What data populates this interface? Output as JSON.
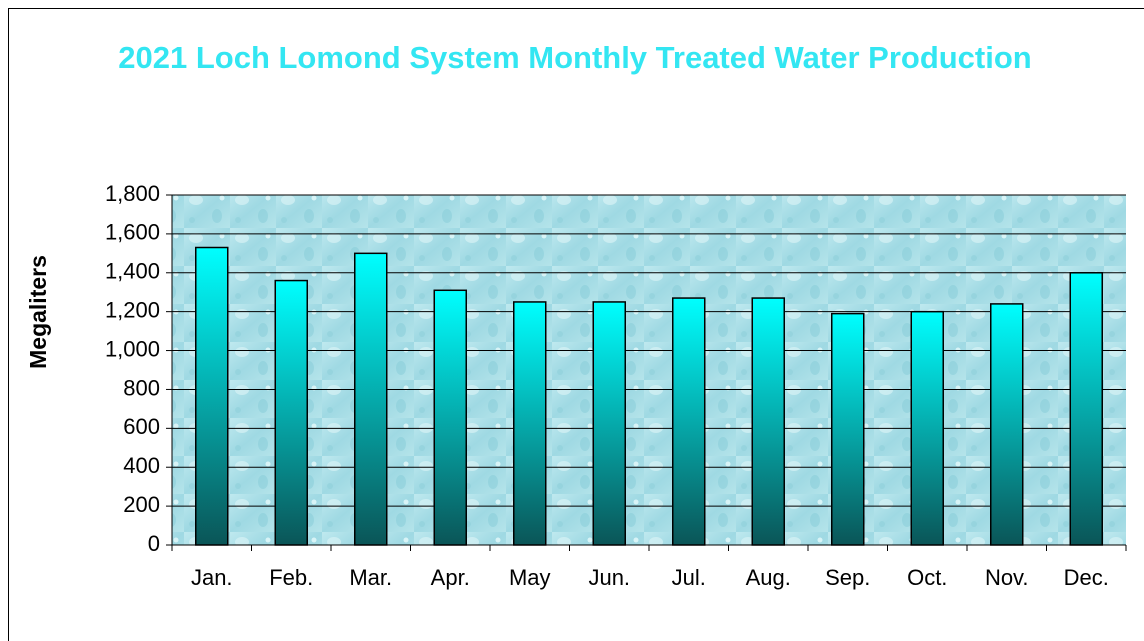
{
  "chart_data": {
    "type": "bar",
    "title": "2021 Loch Lomond System Monthly Treated Water Production",
    "y_label": "Megaliters",
    "categories": [
      "Jan.",
      "Feb.",
      "Mar.",
      "Apr.",
      "May",
      "Jun.",
      "Jul.",
      "Aug.",
      "Sep.",
      "Oct.",
      "Nov.",
      "Dec."
    ],
    "values": [
      1530,
      1360,
      1500,
      1310,
      1250,
      1250,
      1270,
      1270,
      1190,
      1200,
      1240,
      1400
    ],
    "color": "#00ffff",
    "ylim": [
      0,
      1800
    ],
    "yticks": [
      0,
      200,
      400,
      600,
      800,
      {
        "value": 1000,
        "label": "1,000"
      },
      {
        "value": 1200,
        "label": "1,200"
      },
      {
        "value": 1400,
        "label": "1,400"
      },
      {
        "value": 1600,
        "label": "1,600"
      },
      {
        "value": 1800,
        "label": "1,800"
      }
    ],
    "grid": true
  }
}
